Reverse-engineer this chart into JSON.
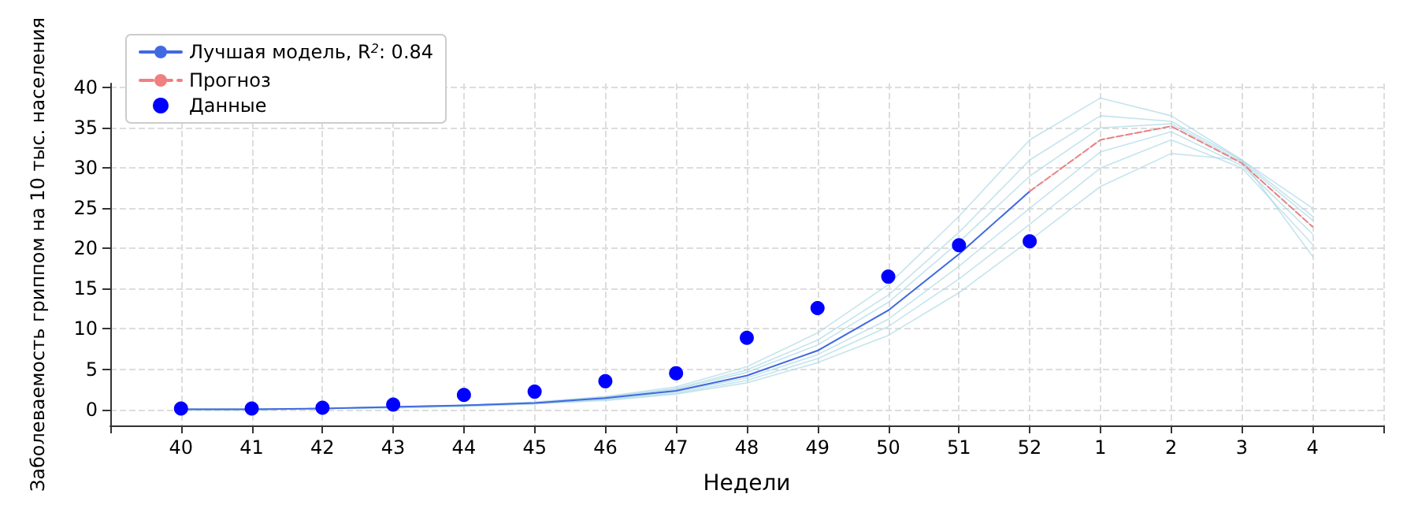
{
  "chart_data": {
    "type": "line",
    "xlabel": "Недели",
    "ylabel": "Заболеваемость гриппом на 10 тыс. населения",
    "categories": [
      "40",
      "41",
      "42",
      "43",
      "44",
      "45",
      "46",
      "47",
      "48",
      "49",
      "50",
      "51",
      "52",
      "1",
      "2",
      "3",
      "4"
    ],
    "ylim": [
      -2,
      40.5
    ],
    "yticks": [
      0,
      5,
      10,
      15,
      20,
      25,
      30,
      35,
      40
    ],
    "grid": true,
    "legend": "top left",
    "series": [
      {
        "color": "#add8e6",
        "values": [
          0,
          0,
          0.1,
          0.3,
          0.5,
          0.9,
          1.6,
          2.8,
          5.3,
          9.5,
          15.5,
          24,
          33.5,
          38.7,
          36.5,
          31,
          25
        ]
      },
      {
        "color": "#add8e6",
        "values": [
          0,
          0,
          0.1,
          0.3,
          0.5,
          0.8,
          1.5,
          2.6,
          4.9,
          8.6,
          14.2,
          22,
          31,
          36.5,
          35.8,
          31,
          24
        ]
      },
      {
        "color": "#add8e6",
        "values": [
          0,
          0,
          0.1,
          0.3,
          0.5,
          0.8,
          1.5,
          2.5,
          4.6,
          8,
          13.3,
          20.8,
          29,
          35,
          35.5,
          30.8,
          23.5
        ]
      },
      {
        "color": "#add8e6",
        "values": [
          0,
          0,
          0.1,
          0.3,
          0.5,
          0.8,
          1.4,
          2.3,
          4.2,
          7.3,
          12.3,
          19.3,
          27.1,
          33.5,
          35.2,
          30.6,
          22.7
        ]
      },
      {
        "color": "#add8e6",
        "values": [
          0,
          0,
          0.1,
          0.2,
          0.4,
          0.7,
          1.3,
          2.2,
          3.9,
          6.8,
          11.2,
          17.8,
          25,
          32,
          34.5,
          30.3,
          21.8
        ]
      },
      {
        "color": "#add8e6",
        "values": [
          0,
          0,
          0.1,
          0.2,
          0.4,
          0.7,
          1.2,
          2,
          3.6,
          6.3,
          10.3,
          16.2,
          23,
          30,
          33.5,
          30,
          20.5
        ]
      },
      {
        "color": "#add8e6",
        "values": [
          0,
          0,
          0.1,
          0.2,
          0.4,
          0.7,
          1.1,
          1.9,
          3.3,
          5.8,
          9.2,
          14.5,
          21,
          27.7,
          31.8,
          31,
          19
        ]
      },
      {
        "name": "Лучшая модель, R$^{2}$: 0.84",
        "color": "#4169e1",
        "values": [
          0,
          0,
          0.1,
          0.3,
          0.5,
          0.8,
          1.4,
          2.3,
          4.2,
          7.3,
          12.3,
          19.3,
          27.1,
          null,
          null,
          null,
          null
        ]
      },
      {
        "name": "Прогноз",
        "color": "#f08080",
        "line_style": "dashed",
        "values": [
          null,
          null,
          null,
          null,
          null,
          null,
          null,
          null,
          null,
          null,
          null,
          null,
          27.1,
          33.5,
          35.2,
          30.6,
          22.7
        ]
      },
      {
        "name": "Данные",
        "type": "scatter",
        "marker": "circle",
        "color": "#0000ff",
        "values": [
          0.1,
          0.1,
          0.2,
          0.6,
          1.8,
          2.2,
          3.5,
          4.5,
          8.9,
          12.6,
          16.5,
          20.4,
          20.9,
          null,
          null,
          null,
          null
        ]
      }
    ]
  }
}
